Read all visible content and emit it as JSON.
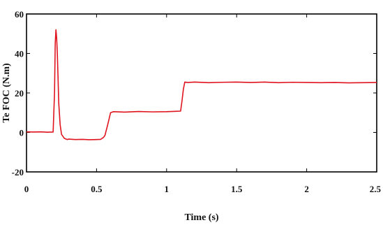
{
  "chart_data": {
    "type": "line",
    "title": "",
    "xlabel": "Time (s)",
    "ylabel": "Te FOC (N.m)",
    "xlim": [
      0,
      2.5
    ],
    "ylim": [
      -20,
      60
    ],
    "xticks": [
      0,
      0.5,
      1,
      1.5,
      2,
      2.5
    ],
    "xtick_labels": [
      "0",
      "0.5",
      "1",
      "1.5",
      "2",
      "2.5"
    ],
    "yticks": [
      -20,
      0,
      20,
      40,
      60
    ],
    "ytick_labels": [
      "-20",
      "0",
      "20",
      "40",
      "60"
    ],
    "grid": false,
    "legend": "none",
    "line_color": "#e0141e",
    "series": [
      {
        "x": [
          0,
          0.05,
          0.1,
          0.15,
          0.19,
          0.2,
          0.205,
          0.21,
          0.215,
          0.22,
          0.225,
          0.23,
          0.24,
          0.25,
          0.27,
          0.29,
          0.3,
          0.35,
          0.4,
          0.45,
          0.5,
          0.53,
          0.55,
          0.56,
          0.58,
          0.6,
          0.62,
          0.7,
          0.8,
          0.9,
          1.0,
          1.1,
          1.11,
          1.12,
          1.13,
          1.15,
          1.2,
          1.3,
          1.4,
          1.5,
          1.6,
          1.7,
          1.8,
          1.9,
          2.0,
          2.1,
          2.2,
          2.3,
          2.4,
          2.5
        ],
        "y": [
          0.3,
          0.2,
          0.3,
          0.1,
          0.2,
          20,
          45,
          52,
          48,
          40,
          28,
          15,
          4,
          -1,
          -3,
          -3.6,
          -3.4,
          -3.6,
          -3.5,
          -3.7,
          -3.6,
          -3.5,
          -2.5,
          -1.5,
          4,
          10,
          10.5,
          10.3,
          10.6,
          10.4,
          10.5,
          10.8,
          16,
          22,
          25.5,
          25.3,
          25.5,
          25.2,
          25.4,
          25.5,
          25.3,
          25.5,
          25.2,
          25.4,
          25.3,
          25.2,
          25.3,
          25.1,
          25.2,
          25.3
        ]
      }
    ]
  }
}
